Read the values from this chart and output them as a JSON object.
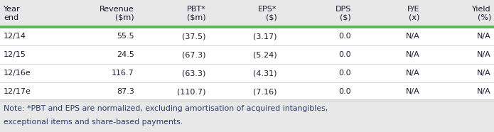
{
  "headers": [
    "Year\nend",
    "Revenue\n($m)",
    "PBT*\n($m)",
    "EPS*\n($)",
    "DPS\n($)",
    "P/E\n(x)",
    "Yield\n(%)"
  ],
  "rows": [
    [
      "12/14",
      "55.5",
      "(37.5)",
      "(3.17)",
      "0.0",
      "N/A",
      "N/A"
    ],
    [
      "12/15",
      "24.5",
      "(67.3)",
      "(5.24)",
      "0.0",
      "N/A",
      "N/A"
    ],
    [
      "12/16e",
      "116.7",
      "(63.3)",
      "(4.31)",
      "0.0",
      "N/A",
      "N/A"
    ],
    [
      "12/17e",
      "87.3",
      "(110.7)",
      "(7.16)",
      "0.0",
      "N/A",
      "N/A"
    ]
  ],
  "note_line1": "Note: *PBT and EPS are normalized, excluding amortisation of acquired intangibles,",
  "note_line2": "exceptional items and share-based payments.",
  "col_aligns": [
    "left",
    "right",
    "right",
    "right",
    "right",
    "right",
    "right"
  ],
  "col_props": [
    0.115,
    0.135,
    0.13,
    0.13,
    0.135,
    0.125,
    0.13
  ],
  "header_bg": "#e8e8e8",
  "row_bg": "#ffffff",
  "green_line_color": "#5cb85c",
  "row_divider_color": "#d0d0d0",
  "note_bg": "#e8e8e8",
  "text_color": "#1a1a2e",
  "note_text_color": "#2c3e6b",
  "font_size": 8.0,
  "header_font_size": 8.0,
  "note_font_size": 7.8
}
